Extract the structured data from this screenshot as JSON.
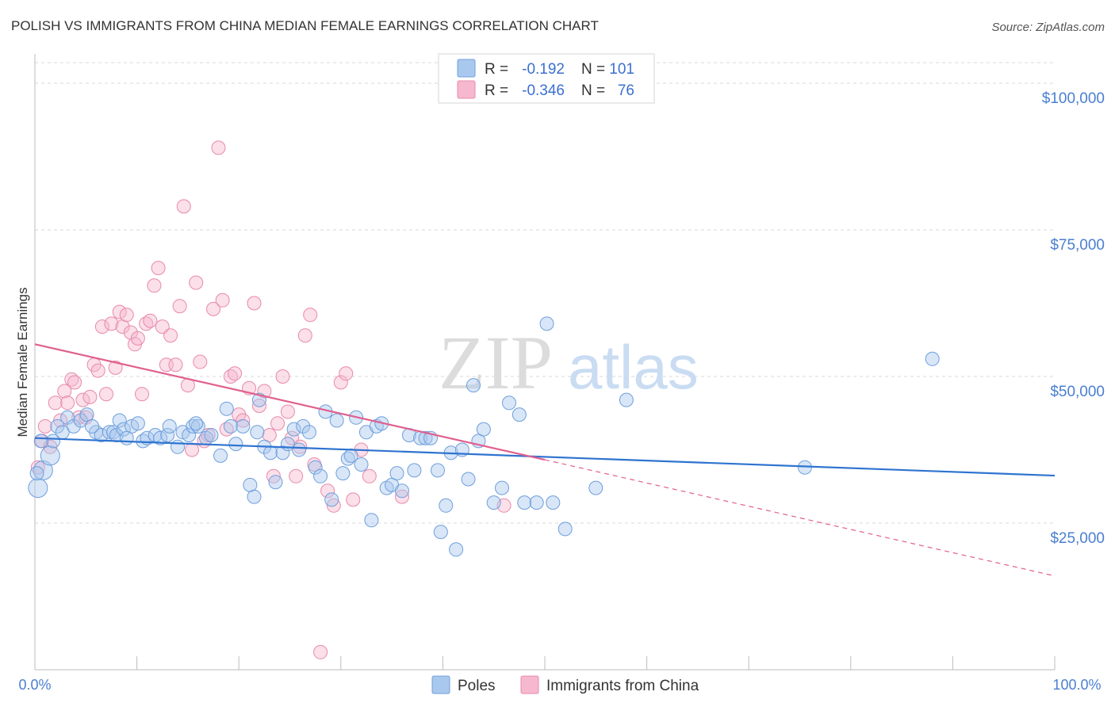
{
  "title": "POLISH VS IMMIGRANTS FROM CHINA MEDIAN FEMALE EARNINGS CORRELATION CHART",
  "source": "Source: ZipAtlas.com",
  "watermark": {
    "zip": "ZIP",
    "atlas": "atlas"
  },
  "colors": {
    "poles_fill": "#a9c8ee",
    "poles_stroke": "#6f9fdc",
    "poles_line": "#2f74d0",
    "china_fill": "#f6b8ce",
    "china_stroke": "#e88aab",
    "china_line": "#e0608e",
    "axis_text": "#4a7fd1",
    "grid": "#d8d8d8"
  },
  "legend": {
    "rows": [
      {
        "r_label": "R =",
        "r_value": "-0.192",
        "n_label": "N =",
        "n_value": "101"
      },
      {
        "r_label": "R =",
        "r_value": "-0.346",
        "n_label": "N =",
        "n_value": "76"
      }
    ]
  },
  "bottom_legend": [
    "Poles",
    "Immigrants from China"
  ],
  "chart_data": {
    "type": "scatter",
    "title": "POLISH VS IMMIGRANTS FROM CHINA MEDIAN FEMALE EARNINGS CORRELATION CHART",
    "xlabel": "",
    "ylabel": "Median Female Earnings",
    "xlim": [
      0,
      100
    ],
    "ylim": [
      0,
      105000
    ],
    "x_tick_labels": [
      "0.0%",
      "100.0%"
    ],
    "y_ticks": [
      25000,
      50000,
      75000,
      100000
    ],
    "y_tick_labels": [
      "$25,000",
      "$50,000",
      "$75,000",
      "$100,000"
    ],
    "grid": true,
    "legend_placement": "top-center",
    "series": [
      {
        "name": "Poles",
        "r": -0.192,
        "n": 101,
        "trend": {
          "x": [
            0,
            100
          ],
          "y": [
            39500,
            33100
          ]
        },
        "points": [
          [
            0.3,
            31000
          ],
          [
            0.8,
            34000
          ],
          [
            1.5,
            36500
          ],
          [
            1.8,
            39000
          ],
          [
            2.2,
            41500
          ],
          [
            3.2,
            43000
          ],
          [
            3.8,
            41500
          ],
          [
            4.5,
            42500
          ],
          [
            5.1,
            43500
          ],
          [
            6.0,
            40500
          ],
          [
            6.5,
            40000
          ],
          [
            7.3,
            40500
          ],
          [
            7.7,
            40500
          ],
          [
            8.0,
            40000
          ],
          [
            8.3,
            42500
          ],
          [
            8.7,
            41000
          ],
          [
            9.5,
            41500
          ],
          [
            10.1,
            42000
          ],
          [
            10.6,
            39000
          ],
          [
            11.0,
            39500
          ],
          [
            11.8,
            40000
          ],
          [
            12.3,
            39500
          ],
          [
            13.0,
            40000
          ],
          [
            13.2,
            41500
          ],
          [
            14.0,
            38000
          ],
          [
            14.5,
            40500
          ],
          [
            15.1,
            40000
          ],
          [
            15.5,
            41500
          ],
          [
            16.0,
            41500
          ],
          [
            16.8,
            39500
          ],
          [
            17.3,
            40000
          ],
          [
            18.2,
            36500
          ],
          [
            18.8,
            44500
          ],
          [
            19.2,
            41500
          ],
          [
            19.7,
            38500
          ],
          [
            20.4,
            41500
          ],
          [
            21.1,
            31500
          ],
          [
            21.5,
            29500
          ],
          [
            22.0,
            46000
          ],
          [
            22.5,
            38000
          ],
          [
            23.1,
            37000
          ],
          [
            23.6,
            32000
          ],
          [
            24.3,
            37000
          ],
          [
            24.8,
            38500
          ],
          [
            25.4,
            41000
          ],
          [
            25.9,
            37500
          ],
          [
            26.3,
            41500
          ],
          [
            26.9,
            40500
          ],
          [
            27.5,
            34500
          ],
          [
            28.0,
            33000
          ],
          [
            28.5,
            44000
          ],
          [
            29.1,
            29000
          ],
          [
            29.6,
            42500
          ],
          [
            30.2,
            33500
          ],
          [
            30.7,
            36000
          ],
          [
            31.0,
            36500
          ],
          [
            31.5,
            43000
          ],
          [
            32.0,
            35000
          ],
          [
            32.5,
            40500
          ],
          [
            33.0,
            25500
          ],
          [
            33.5,
            41500
          ],
          [
            34.0,
            42000
          ],
          [
            34.5,
            31000
          ],
          [
            35.0,
            31500
          ],
          [
            35.5,
            33500
          ],
          [
            36.0,
            30500
          ],
          [
            36.7,
            40000
          ],
          [
            37.2,
            34000
          ],
          [
            37.8,
            39500
          ],
          [
            38.3,
            39500
          ],
          [
            38.8,
            39500
          ],
          [
            39.5,
            34000
          ],
          [
            39.8,
            23500
          ],
          [
            40.3,
            28000
          ],
          [
            40.8,
            37000
          ],
          [
            41.3,
            20500
          ],
          [
            41.9,
            37500
          ],
          [
            42.5,
            32500
          ],
          [
            43.0,
            48500
          ],
          [
            43.5,
            39000
          ],
          [
            44.0,
            41000
          ],
          [
            45.0,
            28500
          ],
          [
            45.8,
            31000
          ],
          [
            46.5,
            45500
          ],
          [
            47.5,
            43500
          ],
          [
            48.0,
            28500
          ],
          [
            49.2,
            28500
          ],
          [
            50.2,
            59000
          ],
          [
            50.8,
            28500
          ],
          [
            52.0,
            24000
          ],
          [
            55.0,
            31000
          ],
          [
            58.0,
            46000
          ],
          [
            75.5,
            34500
          ],
          [
            88.0,
            53000
          ],
          [
            0.2,
            33500
          ],
          [
            0.6,
            39000
          ],
          [
            2.7,
            40500
          ],
          [
            5.6,
            41500
          ],
          [
            9.0,
            39500
          ],
          [
            15.8,
            42000
          ],
          [
            21.8,
            40500
          ]
        ]
      },
      {
        "name": "Immigrants from China",
        "r": -0.346,
        "n": 76,
        "trend": {
          "x": [
            0,
            50
          ],
          "y": [
            55500,
            35800
          ]
        },
        "trend_dashed": {
          "x": [
            50,
            100
          ],
          "y": [
            35800,
            16000
          ]
        },
        "points": [
          [
            0.3,
            34500
          ],
          [
            0.7,
            39000
          ],
          [
            1.0,
            41500
          ],
          [
            1.5,
            38000
          ],
          [
            2.0,
            45500
          ],
          [
            2.5,
            42500
          ],
          [
            2.9,
            47500
          ],
          [
            3.2,
            45500
          ],
          [
            3.6,
            49500
          ],
          [
            3.9,
            49000
          ],
          [
            4.3,
            43000
          ],
          [
            4.7,
            46000
          ],
          [
            5.0,
            43000
          ],
          [
            5.4,
            46500
          ],
          [
            5.8,
            52000
          ],
          [
            6.2,
            51000
          ],
          [
            6.6,
            58500
          ],
          [
            7.0,
            47000
          ],
          [
            7.5,
            59000
          ],
          [
            7.9,
            51500
          ],
          [
            8.3,
            61000
          ],
          [
            8.6,
            58500
          ],
          [
            9.0,
            60500
          ],
          [
            9.4,
            57500
          ],
          [
            9.8,
            55500
          ],
          [
            10.1,
            56500
          ],
          [
            10.5,
            47000
          ],
          [
            10.9,
            59000
          ],
          [
            11.3,
            59500
          ],
          [
            11.7,
            65500
          ],
          [
            12.1,
            68500
          ],
          [
            12.5,
            58500
          ],
          [
            12.9,
            52000
          ],
          [
            13.3,
            57000
          ],
          [
            13.8,
            52000
          ],
          [
            14.2,
            62000
          ],
          [
            14.6,
            79000
          ],
          [
            15.0,
            48500
          ],
          [
            15.4,
            37500
          ],
          [
            15.8,
            66000
          ],
          [
            16.2,
            52500
          ],
          [
            16.6,
            39000
          ],
          [
            17.0,
            40000
          ],
          [
            17.5,
            61500
          ],
          [
            18.0,
            89000
          ],
          [
            18.4,
            63000
          ],
          [
            18.8,
            41000
          ],
          [
            19.2,
            50000
          ],
          [
            19.6,
            50500
          ],
          [
            20.0,
            43500
          ],
          [
            20.4,
            42500
          ],
          [
            21.0,
            48000
          ],
          [
            21.5,
            62500
          ],
          [
            22.0,
            45000
          ],
          [
            22.5,
            47500
          ],
          [
            23.0,
            40000
          ],
          [
            23.4,
            33000
          ],
          [
            23.8,
            42000
          ],
          [
            24.3,
            50000
          ],
          [
            24.8,
            44000
          ],
          [
            25.2,
            39500
          ],
          [
            25.6,
            33000
          ],
          [
            26.0,
            38000
          ],
          [
            26.5,
            57000
          ],
          [
            27.0,
            60500
          ],
          [
            27.4,
            35000
          ],
          [
            28.0,
            3000
          ],
          [
            28.7,
            30500
          ],
          [
            29.3,
            28000
          ],
          [
            30.0,
            49000
          ],
          [
            30.5,
            50500
          ],
          [
            31.2,
            29000
          ],
          [
            32.0,
            37500
          ],
          [
            32.8,
            33000
          ],
          [
            36.0,
            29500
          ],
          [
            46.0,
            28000
          ]
        ]
      }
    ]
  }
}
